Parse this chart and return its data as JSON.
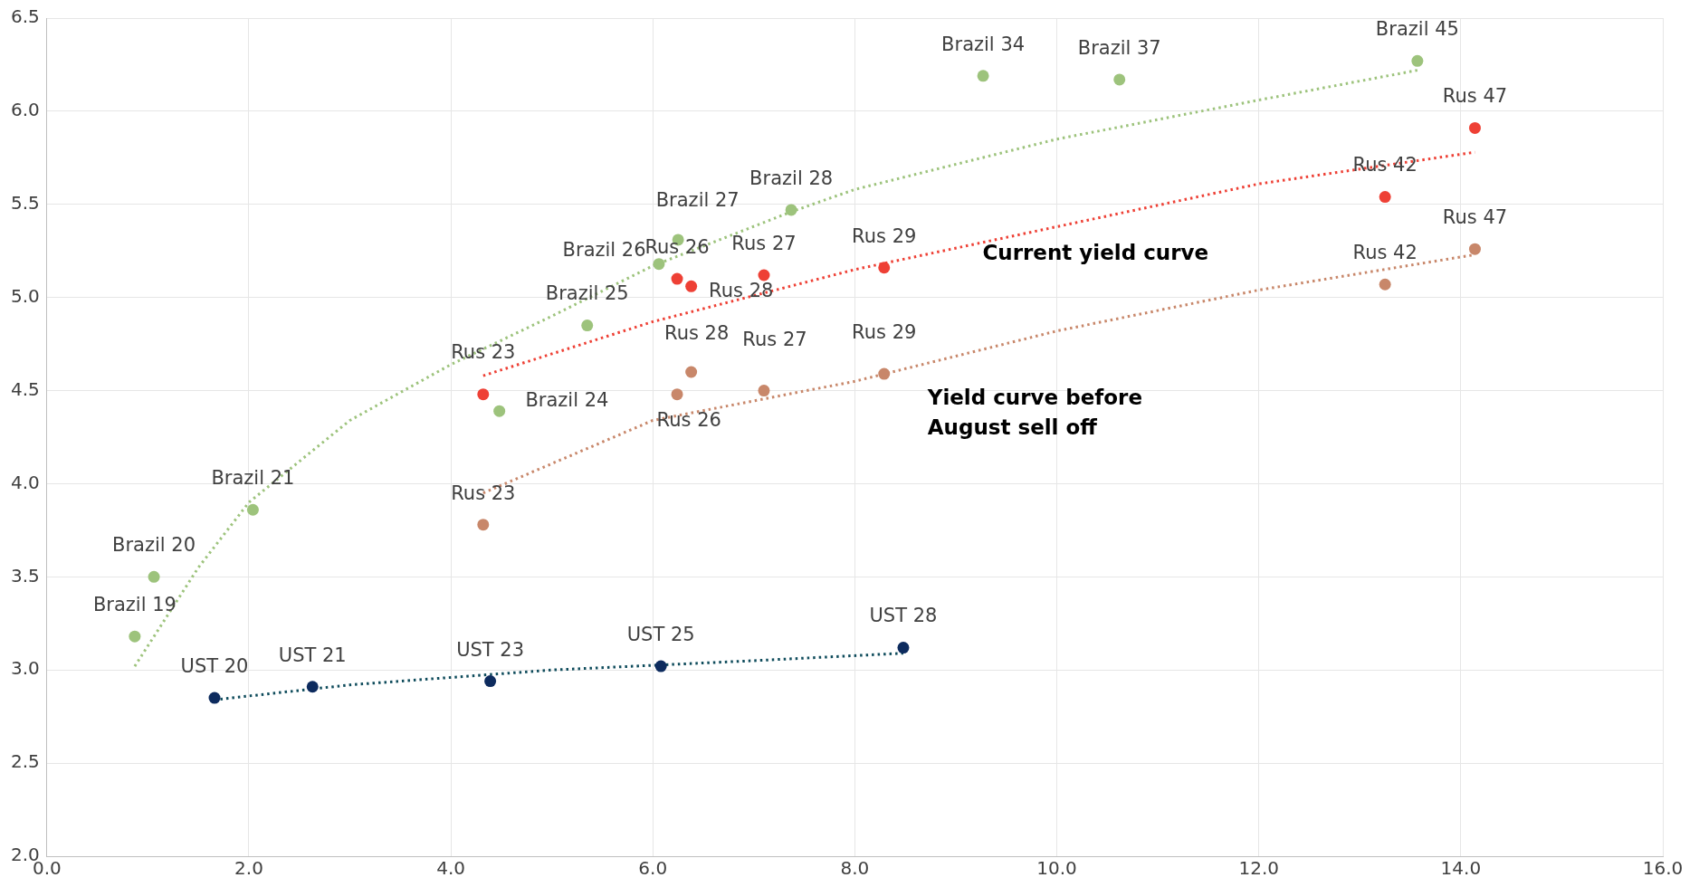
{
  "chart_data": {
    "type": "scatter",
    "xlim": [
      0,
      16
    ],
    "ylim": [
      2,
      6.5
    ],
    "xticks": [
      {
        "value": 0,
        "label": "0.0"
      },
      {
        "value": 2,
        "label": "2.0"
      },
      {
        "value": 4,
        "label": "4.0"
      },
      {
        "value": 6,
        "label": "6.0"
      },
      {
        "value": 8,
        "label": "8.0"
      },
      {
        "value": 10,
        "label": "10.0"
      },
      {
        "value": 12,
        "label": "12.0"
      },
      {
        "value": 14,
        "label": "14.0"
      },
      {
        "value": 16,
        "label": "16.0"
      }
    ],
    "yticks": [
      {
        "value": 2,
        "label": "2.0"
      },
      {
        "value": 2.5,
        "label": "2.5"
      },
      {
        "value": 3,
        "label": "3.0"
      },
      {
        "value": 3.5,
        "label": "3.5"
      },
      {
        "value": 4,
        "label": "4.0"
      },
      {
        "value": 4.5,
        "label": "4.5"
      },
      {
        "value": 5,
        "label": "5.0"
      },
      {
        "value": 5.5,
        "label": "5.5"
      },
      {
        "value": 6,
        "label": "6.0"
      },
      {
        "value": 6.5,
        "label": "6.5"
      }
    ],
    "grid": true,
    "legend": false,
    "series": [
      {
        "type": "scatter",
        "marker": "circle",
        "color": "#9dc37c",
        "x": [
          0.87,
          1.06,
          2.04,
          4.48,
          5.35,
          6.06,
          6.25,
          7.37,
          9.27,
          10.62,
          13.57
        ],
        "values": [
          3.18,
          3.5,
          3.86,
          4.39,
          4.85,
          5.18,
          5.31,
          5.47,
          6.19,
          6.17,
          6.27
        ],
        "value_labels": [
          "Brazil 19",
          "Brazil 20",
          "Brazil 21",
          "Brazil 24",
          "Brazil 25",
          "Brazil 26",
          "Brazil 27",
          "Brazil 28",
          "Brazil 34",
          "Brazil 37",
          "Brazil 45"
        ]
      },
      {
        "type": "scatter",
        "marker": "circle",
        "color": "#ee4035",
        "x": [
          4.32,
          6.24,
          6.38,
          7.1,
          8.29,
          13.25,
          14.14
        ],
        "values": [
          4.48,
          5.1,
          5.06,
          5.12,
          5.16,
          5.54,
          5.91
        ],
        "value_labels": [
          "Rus 23",
          "Rus 26",
          "Rus 28",
          "Rus 27",
          "Rus 29",
          "Rus 42",
          "Rus 47"
        ]
      },
      {
        "type": "scatter",
        "marker": "circle",
        "color": "#c8876a",
        "x": [
          4.32,
          6.24,
          6.38,
          7.1,
          8.29,
          13.25,
          14.14
        ],
        "values": [
          3.78,
          4.48,
          4.6,
          4.5,
          4.59,
          5.07,
          5.26
        ],
        "value_labels": [
          "Rus 23",
          "Rus 26",
          "Rus 28",
          "Rus 27",
          "Rus 29",
          "Rus 42",
          "Rus 47"
        ]
      },
      {
        "type": "scatter",
        "marker": "circle",
        "color": "#0d2b5e",
        "x": [
          1.66,
          2.63,
          4.39,
          6.08,
          8.48
        ],
        "values": [
          2.85,
          2.91,
          2.94,
          3.02,
          3.12
        ],
        "value_labels": [
          "UST 20",
          "UST 21",
          "UST 23",
          "UST 25",
          "UST 28"
        ]
      },
      {
        "type": "line",
        "marker": "none",
        "line_style": "dotted",
        "color": "#9dc37c",
        "x": [
          0.87,
          1.5,
          2,
          3,
          4,
          5,
          6,
          7.37,
          8,
          10,
          12,
          13.57
        ],
        "values": [
          3.02,
          3.55,
          3.9,
          4.34,
          4.64,
          4.9,
          5.17,
          5.46,
          5.58,
          5.85,
          6.06,
          6.22
        ]
      },
      {
        "type": "line",
        "marker": "none",
        "line_style": "dotted",
        "color": "#ee4035",
        "x": [
          4.32,
          6,
          8,
          10,
          12,
          14.14
        ],
        "values": [
          4.58,
          4.87,
          5.15,
          5.38,
          5.61,
          5.78
        ]
      },
      {
        "type": "line",
        "marker": "none",
        "line_style": "dotted",
        "color": "#c8876a",
        "x": [
          4.32,
          6,
          8,
          10,
          12,
          14.14
        ],
        "values": [
          3.95,
          4.34,
          4.55,
          4.82,
          5.04,
          5.23
        ]
      },
      {
        "type": "line",
        "marker": "none",
        "line_style": "dotted",
        "color": "#0f4c5c",
        "x": [
          1.66,
          3,
          5,
          7,
          8.48
        ],
        "values": [
          2.84,
          2.92,
          3,
          3.05,
          3.09
        ]
      }
    ],
    "annotations": [
      "Current yield curve",
      "Yield curve before\nAugust sell off"
    ]
  }
}
